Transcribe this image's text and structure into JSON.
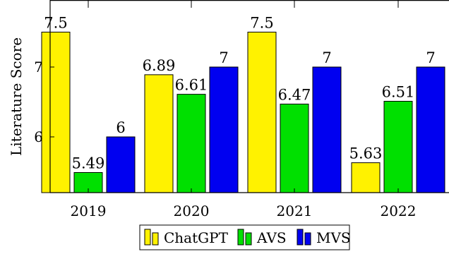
{
  "chart_data": {
    "type": "bar",
    "categories": [
      "2019",
      "2020",
      "2021",
      "2022"
    ],
    "series": [
      {
        "name": "ChatGPT",
        "color": "#FFF200",
        "values": [
          7.5,
          6.89,
          7.5,
          5.63
        ]
      },
      {
        "name": "AVS",
        "color": "#00E000",
        "values": [
          5.49,
          6.61,
          6.47,
          6.51
        ]
      },
      {
        "name": "MVS",
        "color": "#0000F0",
        "values": [
          6,
          7,
          7,
          7
        ]
      }
    ],
    "data_labels": [
      [
        "7.5",
        "6.89",
        "7.5",
        "5.63"
      ],
      [
        "5.49",
        "6.61",
        "6.47",
        "6.51"
      ],
      [
        "6",
        "7",
        "7",
        "7"
      ]
    ],
    "title": "",
    "xlabel": "",
    "ylabel": "Literature Score",
    "yticks": [
      "6",
      "7"
    ],
    "ylim": [
      5.2,
      7.7
    ],
    "grid": false,
    "legend_position": "bottom-center"
  }
}
